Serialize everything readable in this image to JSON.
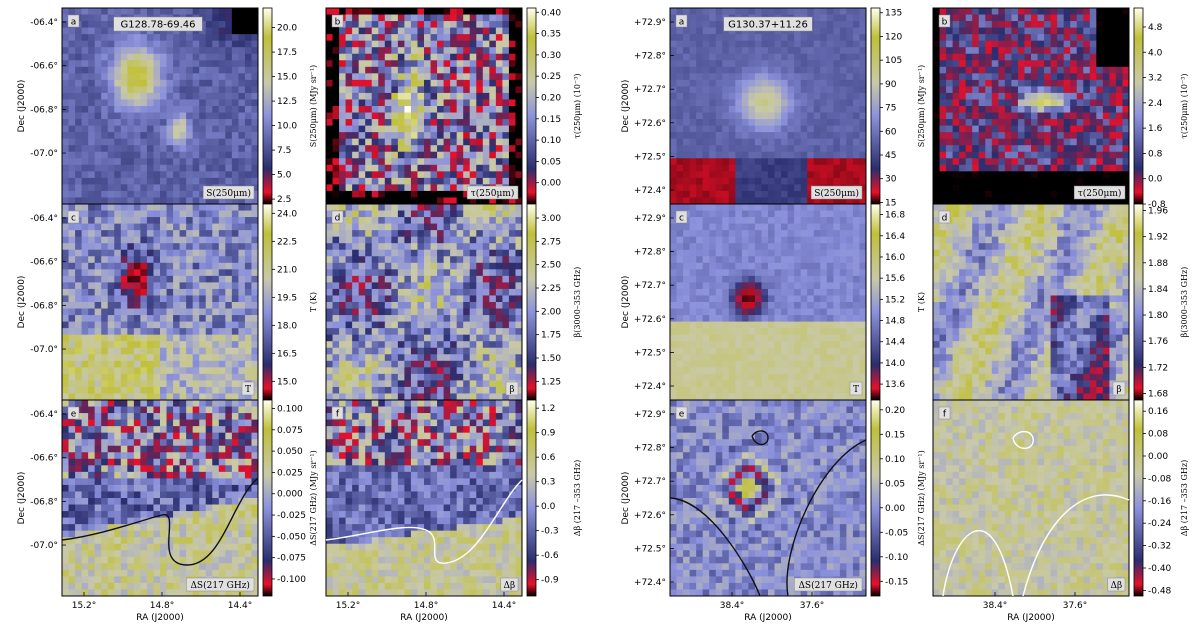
{
  "chart_data": [
    {
      "type": "heatmap",
      "field": "G128.78-69.46",
      "xlabel": "RA (J2000)",
      "ylabel": "Dec (J2000)",
      "x_ticks": [
        "15.2°",
        "14.8°",
        "14.4°"
      ],
      "y_ticks": [
        "-06.4°",
        "-06.6°",
        "-06.8°",
        "-07.0°"
      ],
      "panels": [
        {
          "letter": "a",
          "quantity": "S(250μm)",
          "colorbar_label": "S(250μm) (MJy sr⁻¹)",
          "ticks": [
            "20.0",
            "17.5",
            "15.0",
            "12.5",
            "10.0",
            "7.5",
            "5.0",
            "2.5"
          ],
          "range": [
            2.0,
            22.0
          ]
        },
        {
          "letter": "b",
          "quantity": "τ(250μm)",
          "colorbar_label": "τ(250μm) (10⁻³)",
          "ticks": [
            "0.40",
            "0.35",
            "0.30",
            "0.25",
            "0.20",
            "0.15",
            "0.10",
            "0.05",
            "0.00"
          ],
          "range": [
            -0.05,
            0.41
          ]
        },
        {
          "letter": "c",
          "quantity": "T",
          "colorbar_label": "T (K)",
          "ticks": [
            "24.0",
            "22.5",
            "21.0",
            "19.5",
            "18.0",
            "16.5",
            "15.0"
          ],
          "range": [
            14.0,
            24.5
          ]
        },
        {
          "letter": "d",
          "quantity": "β",
          "colorbar_label": "β(3000–353 GHz)",
          "ticks": [
            "3.00",
            "2.75",
            "2.50",
            "2.25",
            "2.00",
            "1.75",
            "1.50",
            "1.25"
          ],
          "range": [
            1.05,
            3.15
          ]
        },
        {
          "letter": "e",
          "quantity": "ΔS(217 GHz)",
          "colorbar_label": "ΔS(217 GHz) (MJy sr⁻¹)",
          "ticks": [
            "0.100",
            "0.075",
            "0.050",
            "0.025",
            "0.000",
            "-0.025",
            "-0.050",
            "-0.075",
            "-0.100"
          ],
          "range": [
            -0.12,
            0.11
          ]
        },
        {
          "letter": "f",
          "quantity": "Δβ",
          "colorbar_label": "Δβ (217 –353 GHz)",
          "ticks": [
            "1.2",
            "0.9",
            "0.6",
            "0.3",
            "0.0",
            "-0.3",
            "-0.6",
            "-0.9"
          ],
          "range": [
            -1.1,
            1.3
          ]
        }
      ]
    },
    {
      "type": "heatmap",
      "field": "G130.37+11.26",
      "xlabel": "RA (J2000)",
      "ylabel": "Dec (J2000)",
      "x_ticks": [
        "38.4°",
        "37.6°"
      ],
      "y_ticks": [
        "+72.9°",
        "+72.8°",
        "+72.7°",
        "+72.6°",
        "+72.5°",
        "+72.4°"
      ],
      "panels": [
        {
          "letter": "a",
          "quantity": "S(250μm)",
          "colorbar_label": "S(250μm) (MJy sr⁻¹)",
          "ticks": [
            "135",
            "120",
            "105",
            "90",
            "75",
            "60",
            "45",
            "30",
            "15"
          ],
          "range": [
            14,
            138
          ]
        },
        {
          "letter": "b",
          "quantity": "τ(250μm)",
          "colorbar_label": "τ(250μm) (10⁻³)",
          "ticks": [
            "4.8",
            "4.0",
            "3.2",
            "2.4",
            "1.6",
            "0.8",
            "0.0",
            "-0.8"
          ],
          "range": [
            -0.8,
            5.4
          ]
        },
        {
          "letter": "c",
          "quantity": "T",
          "colorbar_label": "T (K)",
          "ticks": [
            "16.8",
            "16.4",
            "16.0",
            "15.6",
            "15.2",
            "14.8",
            "14.4",
            "14.0",
            "13.6"
          ],
          "range": [
            13.3,
            17.0
          ]
        },
        {
          "letter": "d",
          "quantity": "β",
          "colorbar_label": "β(3000–353 GHz)",
          "ticks": [
            "1.96",
            "1.92",
            "1.88",
            "1.84",
            "1.80",
            "1.76",
            "1.72",
            "1.68"
          ],
          "range": [
            1.67,
            1.97
          ]
        },
        {
          "letter": "e",
          "quantity": "ΔS(217 GHz)",
          "colorbar_label": "ΔS(217 GHz) (MJy sr⁻¹)",
          "ticks": [
            "0.20",
            "0.15",
            "0.10",
            "0.05",
            "0.00",
            "-0.05",
            "-0.10",
            "-0.15"
          ],
          "range": [
            -0.18,
            0.22
          ]
        },
        {
          "letter": "f",
          "quantity": "Δβ",
          "colorbar_label": "Δβ (217 –353 GHz)",
          "ticks": [
            "0.16",
            "0.08",
            "0.00",
            "-0.08",
            "-0.16",
            "-0.24",
            "-0.32",
            "-0.40",
            "-0.48"
          ],
          "range": [
            -0.5,
            0.2
          ]
        }
      ]
    }
  ],
  "colors": {
    "cmap": [
      "#000000",
      "#e8102a",
      "#2a2e6e",
      "#8c92dc",
      "#c9c9a9",
      "#c0c03a",
      "#ffffee"
    ]
  }
}
